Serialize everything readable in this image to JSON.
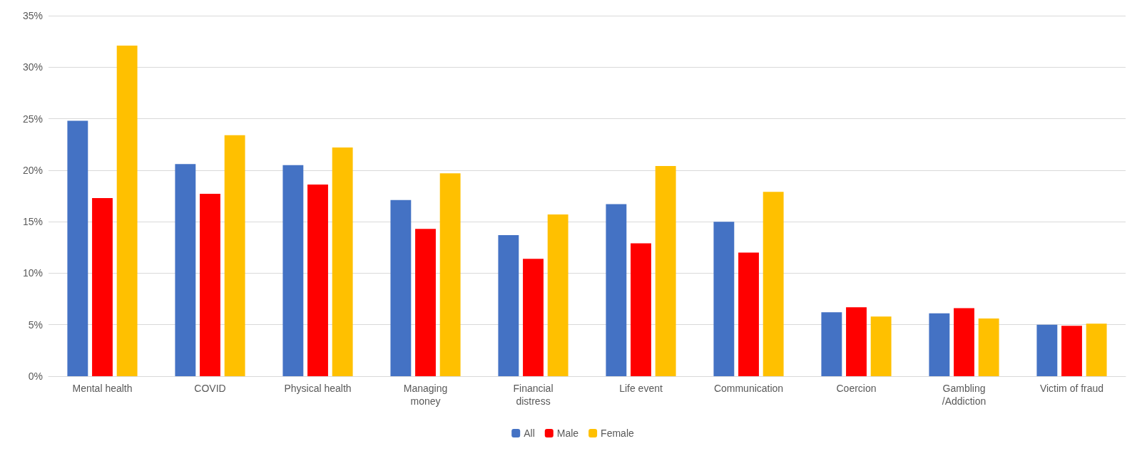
{
  "chart_data": {
    "type": "bar",
    "categories": [
      "Mental health",
      "COVID",
      "Physical health",
      "Managing\nmoney",
      "Financial\ndistress",
      "Life event",
      "Communication",
      "Coercion",
      "Gambling\n/Addiction",
      "Victim of fraud"
    ],
    "series": [
      {
        "name": "All",
        "color": "#4472c4",
        "values": [
          24.8,
          20.6,
          20.5,
          17.1,
          13.7,
          16.7,
          15.0,
          6.2,
          6.1,
          5.0
        ]
      },
      {
        "name": "Male",
        "color": "#ff0000",
        "values": [
          17.3,
          17.7,
          18.6,
          14.3,
          11.4,
          12.9,
          12.0,
          6.7,
          6.6,
          4.9
        ]
      },
      {
        "name": "Female",
        "color": "#ffc000",
        "values": [
          32.1,
          23.4,
          22.2,
          19.7,
          15.7,
          20.4,
          17.9,
          5.8,
          5.6,
          5.1
        ]
      }
    ],
    "ylim": [
      0,
      35
    ],
    "yticks": [
      {
        "value": 0,
        "label": "0%"
      },
      {
        "value": 5,
        "label": "5%"
      },
      {
        "value": 10,
        "label": "10%"
      },
      {
        "value": 15,
        "label": "15%"
      },
      {
        "value": 20,
        "label": "20%"
      },
      {
        "value": 25,
        "label": "25%"
      },
      {
        "value": 30,
        "label": "30%"
      },
      {
        "value": 35,
        "label": "35%"
      }
    ],
    "grid": "y",
    "legend": "bottom"
  }
}
